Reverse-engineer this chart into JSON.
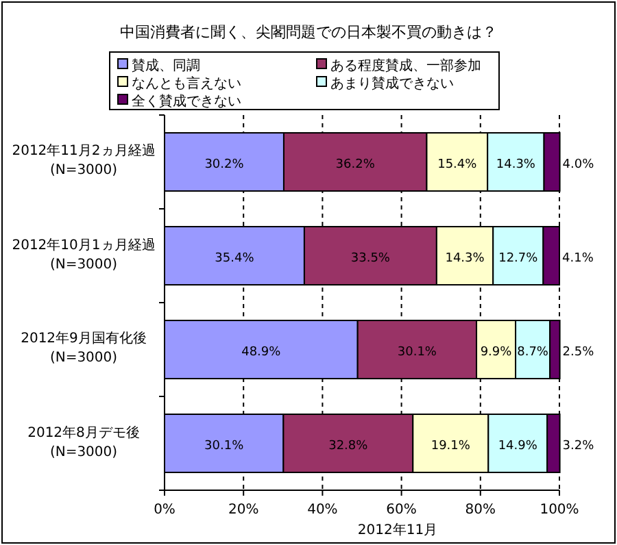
{
  "chart_data": {
    "type": "bar",
    "orientation": "horizontal",
    "stacked": true,
    "title": "中国消費者に聞く、尖閣問題での日本製不買の動きは？",
    "categories": [
      "2012年11月2ヵ月経過(N=3000)",
      "2012年10月1ヵ月経過(N=3000)",
      "2012年9月国有化後(N=3000)",
      "2012年8月デモ後(N=3000)"
    ],
    "series": [
      {
        "name": "賛成、同調",
        "color": "#9999ff",
        "values": [
          30.2,
          35.4,
          48.9,
          30.1
        ],
        "value_labels": [
          "30.2%",
          "35.4%",
          "48.9%",
          "30.1%"
        ]
      },
      {
        "name": "ある程度賛成、一部参加",
        "color": "#993366",
        "values": [
          36.2,
          33.5,
          30.1,
          32.8
        ],
        "value_labels": [
          "36.2%",
          "33.5%",
          "30.1%",
          "32.8%"
        ]
      },
      {
        "name": "なんとも言えない",
        "color": "#ffffcc",
        "values": [
          15.4,
          14.3,
          9.9,
          19.1
        ],
        "value_labels": [
          "15.4%",
          "14.3%",
          "9.9%",
          "19.1%"
        ]
      },
      {
        "name": "あまり賛成できない",
        "color": "#ccffff",
        "values": [
          14.3,
          12.7,
          8.7,
          14.9
        ],
        "value_labels": [
          "14.3%",
          "12.7%",
          "8.7%",
          "14.9%"
        ]
      },
      {
        "name": "全く賛成できない",
        "color": "#660066",
        "values": [
          4.0,
          4.1,
          2.5,
          3.2
        ],
        "value_labels": [
          "4.0%",
          "4.1%",
          "2.5%",
          "3.2%"
        ]
      }
    ],
    "xlim": [
      0,
      100
    ],
    "xticks": [
      {
        "value": 0,
        "label": "0%"
      },
      {
        "value": 20,
        "label": "20%"
      },
      {
        "value": 40,
        "label": "40%"
      },
      {
        "value": 60,
        "label": "60%"
      },
      {
        "value": 80,
        "label": "80%"
      },
      {
        "value": 100,
        "label": "100%"
      }
    ],
    "grid": "x",
    "legend": "top",
    "annotations": [
      "2012年11月"
    ]
  }
}
